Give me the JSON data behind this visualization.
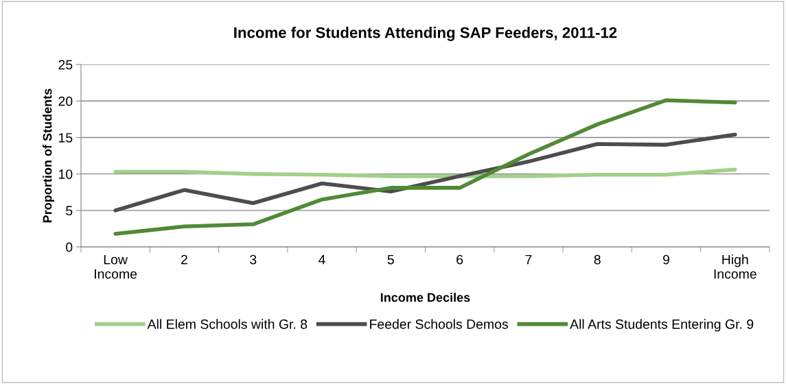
{
  "chart_data": {
    "type": "line",
    "title": "Income for Students Attending SAP Feeders, 2011-12",
    "xlabel": "Income Deciles",
    "ylabel": "Proportion of Students",
    "categories": [
      "Low\nIncome",
      "2",
      "3",
      "4",
      "5",
      "6",
      "7",
      "8",
      "9",
      "High\nIncome"
    ],
    "series": [
      {
        "name": "All Elem Schools with Gr. 8",
        "color": "#a3d08a",
        "values": [
          10.3,
          10.3,
          10.0,
          9.9,
          9.7,
          9.7,
          9.7,
          9.9,
          9.9,
          10.6
        ]
      },
      {
        "name": "Feeder Schools Demos",
        "color": "#4d4d4d",
        "values": [
          5.0,
          7.8,
          6.0,
          8.7,
          7.6,
          9.7,
          11.7,
          14.1,
          14.0,
          15.4
        ]
      },
      {
        "name": "All Arts Students Entering Gr. 9",
        "color": "#508a35",
        "values": [
          1.8,
          2.8,
          3.1,
          6.5,
          8.1,
          8.1,
          12.7,
          16.8,
          20.1,
          19.8
        ]
      }
    ],
    "ylim": [
      0,
      25
    ],
    "yticks": [
      0,
      5,
      10,
      15,
      20,
      25
    ],
    "grid": "y",
    "legend": "bottom",
    "marker": "none",
    "line_style": "solid"
  }
}
